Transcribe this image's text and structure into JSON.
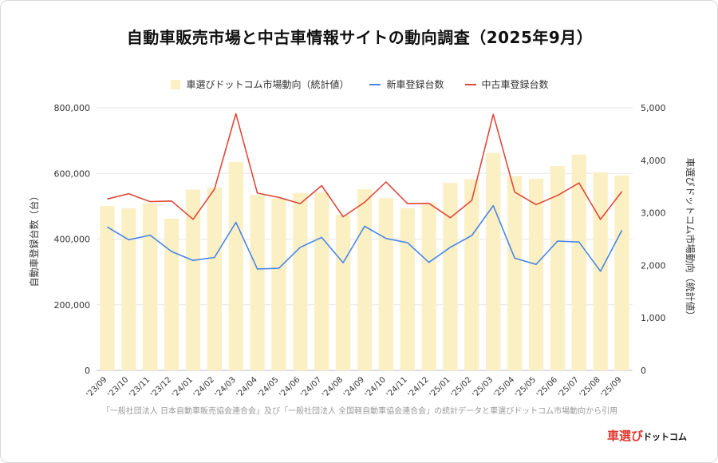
{
  "title": "自動車販売市場と中古車情報サイトの動向調査（2025年9月）",
  "source_note": "「一般社団法人 日本自動車販売協会連合会」及び「一般社団法人 全国軽自動車協会連合会」の統計データと車選びドットコム市場動向から引用",
  "logo": {
    "part1": "車選び",
    "part2": "ドットコム"
  },
  "colors": {
    "bars": "#fbefc4",
    "new_cars": "#4a86e8",
    "used_cars": "#e0493a",
    "grid": "#e6e6e6",
    "text": "#333333"
  },
  "chart_data": {
    "type": "bar",
    "categories": [
      "'23/09",
      "'23/10",
      "'23/11",
      "'23/12",
      "'24/01",
      "'24/02",
      "'24/03",
      "'24/04",
      "'24/05",
      "'24/06",
      "'24/07",
      "'24/08",
      "'24/09",
      "'24/10",
      "'24/11",
      "'24/12",
      "'25/01",
      "'25/02",
      "'25/03",
      "'25/04",
      "'25/05",
      "'25/06",
      "'25/07",
      "'25/08",
      "'25/09"
    ],
    "left_axis": {
      "label": "自動車登録台数（台）",
      "ylim": [
        0,
        800000
      ],
      "ticks": [
        "0",
        "200,000",
        "400,000",
        "600,000",
        "800,000"
      ]
    },
    "right_axis": {
      "label": "車選びドットコム市場動向（統計値）",
      "ylim": [
        0,
        5000
      ],
      "ticks": [
        "0",
        "1,000",
        "2,000",
        "3,000",
        "4,000",
        "5,000"
      ]
    },
    "legend_position": "top",
    "grid": true,
    "series": [
      {
        "name": "車選びドットコム市場動向（統計値）",
        "type": "bar",
        "axis": "right",
        "values": [
          3130,
          3090,
          3180,
          2890,
          3440,
          3480,
          3970,
          3340,
          3270,
          3380,
          3390,
          2960,
          3450,
          3280,
          3090,
          3180,
          3570,
          3640,
          4140,
          3700,
          3650,
          3890,
          4110,
          3770,
          3710
        ]
      },
      {
        "name": "新車登録台数",
        "type": "line",
        "axis": "left",
        "values": [
          437000,
          398000,
          412000,
          362000,
          335000,
          344000,
          451000,
          309000,
          311000,
          375000,
          405000,
          328000,
          439000,
          402000,
          389000,
          329000,
          375000,
          411000,
          502000,
          342000,
          323000,
          394000,
          391000,
          302000,
          427000
        ]
      },
      {
        "name": "中古車登録台数",
        "type": "line",
        "axis": "left",
        "values": [
          522000,
          538000,
          514000,
          516000,
          460000,
          552000,
          782000,
          540000,
          527000,
          508000,
          563000,
          468000,
          512000,
          574000,
          508000,
          509000,
          465000,
          518000,
          780000,
          543000,
          505000,
          533000,
          571000,
          460000,
          545000
        ]
      }
    ]
  }
}
